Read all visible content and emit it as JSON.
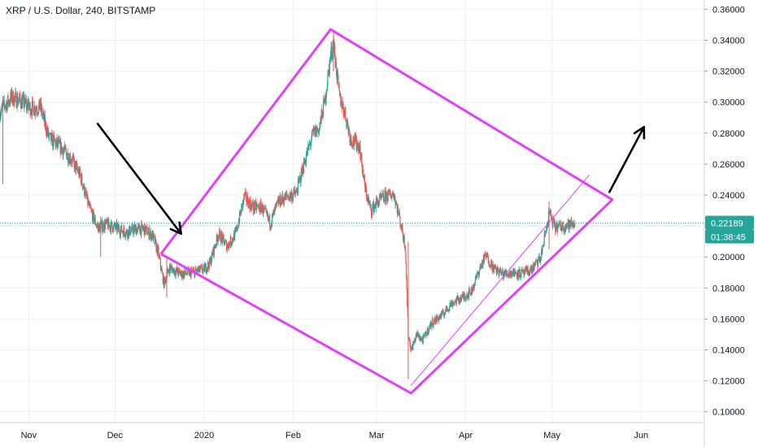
{
  "symbol_title": "XRP / U.S. Dollar, 240, BITSTAMP",
  "price_badge": "0.22189",
  "countdown_badge": "01:38:45",
  "colors": {
    "up": "#26a69a",
    "down": "#ef5350",
    "drawing": "#e040fb",
    "arrow": "#000000",
    "badge": "#26a69a",
    "grid": "#eef0f4"
  },
  "chart_data": {
    "type": "candlestick",
    "title": "XRP / U.S. Dollar, 240, BITSTAMP",
    "ylim": [
      0.093,
      0.366
    ],
    "y_ticks": [
      "0.36000",
      "0.34000",
      "0.32000",
      "0.30000",
      "0.28000",
      "0.26000",
      "0.24000",
      "0.22000",
      "0.20000",
      "0.18000",
      "0.16000",
      "0.14000",
      "0.12000",
      "0.10000"
    ],
    "x_ticks": [
      "Nov",
      "Dec",
      "2020",
      "Feb",
      "Mar",
      "Apr",
      "May",
      "Jun"
    ],
    "x_tick_dates": [
      "2019-11-01",
      "2019-12-01",
      "2020-01-01",
      "2020-02-01",
      "2020-03-01",
      "2020-04-01",
      "2020-05-01",
      "2020-06-01"
    ],
    "x_range": [
      "2019-10-22",
      "2020-06-23"
    ],
    "last_price": 0.22189,
    "price_path": [
      [
        "2019-10-22",
        0.294
      ],
      [
        "2019-10-26",
        0.303
      ],
      [
        "2019-10-29",
        0.301
      ],
      [
        "2019-11-02",
        0.296
      ],
      [
        "2019-11-05",
        0.297
      ],
      [
        "2019-11-08",
        0.277
      ],
      [
        "2019-11-12",
        0.271
      ],
      [
        "2019-11-16",
        0.263
      ],
      [
        "2019-11-19",
        0.252
      ],
      [
        "2019-11-22",
        0.232
      ],
      [
        "2019-11-25",
        0.219
      ],
      [
        "2019-11-28",
        0.221
      ],
      [
        "2019-12-01",
        0.219
      ],
      [
        "2019-12-05",
        0.216
      ],
      [
        "2019-12-08",
        0.218
      ],
      [
        "2019-12-11",
        0.218
      ],
      [
        "2019-12-14",
        0.214
      ],
      [
        "2019-12-16",
        0.203
      ],
      [
        "2019-12-18",
        0.183
      ],
      [
        "2019-12-20",
        0.193
      ],
      [
        "2019-12-24",
        0.189
      ],
      [
        "2019-12-28",
        0.19
      ],
      [
        "2020-01-01",
        0.192
      ],
      [
        "2020-01-03",
        0.196
      ],
      [
        "2020-01-06",
        0.215
      ],
      [
        "2020-01-09",
        0.207
      ],
      [
        "2020-01-12",
        0.215
      ],
      [
        "2020-01-15",
        0.239
      ],
      [
        "2020-01-18",
        0.232
      ],
      [
        "2020-01-21",
        0.232
      ],
      [
        "2020-01-24",
        0.222
      ],
      [
        "2020-01-27",
        0.236
      ],
      [
        "2020-01-30",
        0.239
      ],
      [
        "2020-02-02",
        0.241
      ],
      [
        "2020-02-05",
        0.262
      ],
      [
        "2020-02-08",
        0.28
      ],
      [
        "2020-02-10",
        0.283
      ],
      [
        "2020-02-12",
        0.301
      ],
      [
        "2020-02-14",
        0.33
      ],
      [
        "2020-02-15",
        0.338
      ],
      [
        "2020-02-17",
        0.304
      ],
      [
        "2020-02-19",
        0.293
      ],
      [
        "2020-02-21",
        0.276
      ],
      [
        "2020-02-24",
        0.272
      ],
      [
        "2020-02-26",
        0.244
      ],
      [
        "2020-02-28",
        0.23
      ],
      [
        "2020-03-01",
        0.235
      ],
      [
        "2020-03-04",
        0.239
      ],
      [
        "2020-03-07",
        0.241
      ],
      [
        "2020-03-09",
        0.225
      ],
      [
        "2020-03-11",
        0.207
      ],
      [
        "2020-03-12",
        0.15
      ],
      [
        "2020-03-13",
        0.14
      ],
      [
        "2020-03-15",
        0.15
      ],
      [
        "2020-03-17",
        0.146
      ],
      [
        "2020-03-20",
        0.157
      ],
      [
        "2020-03-24",
        0.163
      ],
      [
        "2020-03-27",
        0.17
      ],
      [
        "2020-03-31",
        0.174
      ],
      [
        "2020-04-03",
        0.178
      ],
      [
        "2020-04-06",
        0.193
      ],
      [
        "2020-04-08",
        0.201
      ],
      [
        "2020-04-11",
        0.192
      ],
      [
        "2020-04-14",
        0.189
      ],
      [
        "2020-04-18",
        0.19
      ],
      [
        "2020-04-21",
        0.189
      ],
      [
        "2020-04-24",
        0.192
      ],
      [
        "2020-04-27",
        0.199
      ],
      [
        "2020-04-29",
        0.218
      ],
      [
        "2020-04-30",
        0.229
      ],
      [
        "2020-05-02",
        0.219
      ],
      [
        "2020-05-05",
        0.22
      ],
      [
        "2020-05-08",
        0.221
      ],
      [
        "2020-05-09",
        0.222
      ]
    ],
    "wick_spikes": [
      {
        "date": "2019-10-23",
        "low": 0.247,
        "high": 0.304
      },
      {
        "date": "2019-11-26",
        "low": 0.2,
        "high": 0.226
      },
      {
        "date": "2019-12-19",
        "low": 0.174,
        "high": 0.2
      },
      {
        "date": "2020-02-15",
        "low": 0.32,
        "high": 0.346
      },
      {
        "date": "2020-03-12",
        "low": 0.121,
        "high": 0.21
      },
      {
        "date": "2020-04-30",
        "low": 0.205,
        "high": 0.236
      }
    ],
    "drawings": {
      "rhombus": [
        [
          "2019-12-17",
          0.202
        ],
        [
          "2020-02-14",
          0.347
        ],
        [
          "2020-05-22",
          0.237
        ],
        [
          "2020-03-13",
          0.112
        ],
        [
          "2019-12-17",
          0.202
        ]
      ],
      "inner_channel": [
        [
          "2020-03-13",
          0.117
        ],
        [
          "2020-05-14",
          0.253
        ]
      ],
      "arrow_down": [
        [
          "2019-11-25",
          0.286
        ],
        [
          "2019-12-24",
          0.215
        ]
      ],
      "arrow_up": [
        [
          "2020-05-21",
          0.242
        ],
        [
          "2020-06-02",
          0.284
        ]
      ]
    }
  }
}
